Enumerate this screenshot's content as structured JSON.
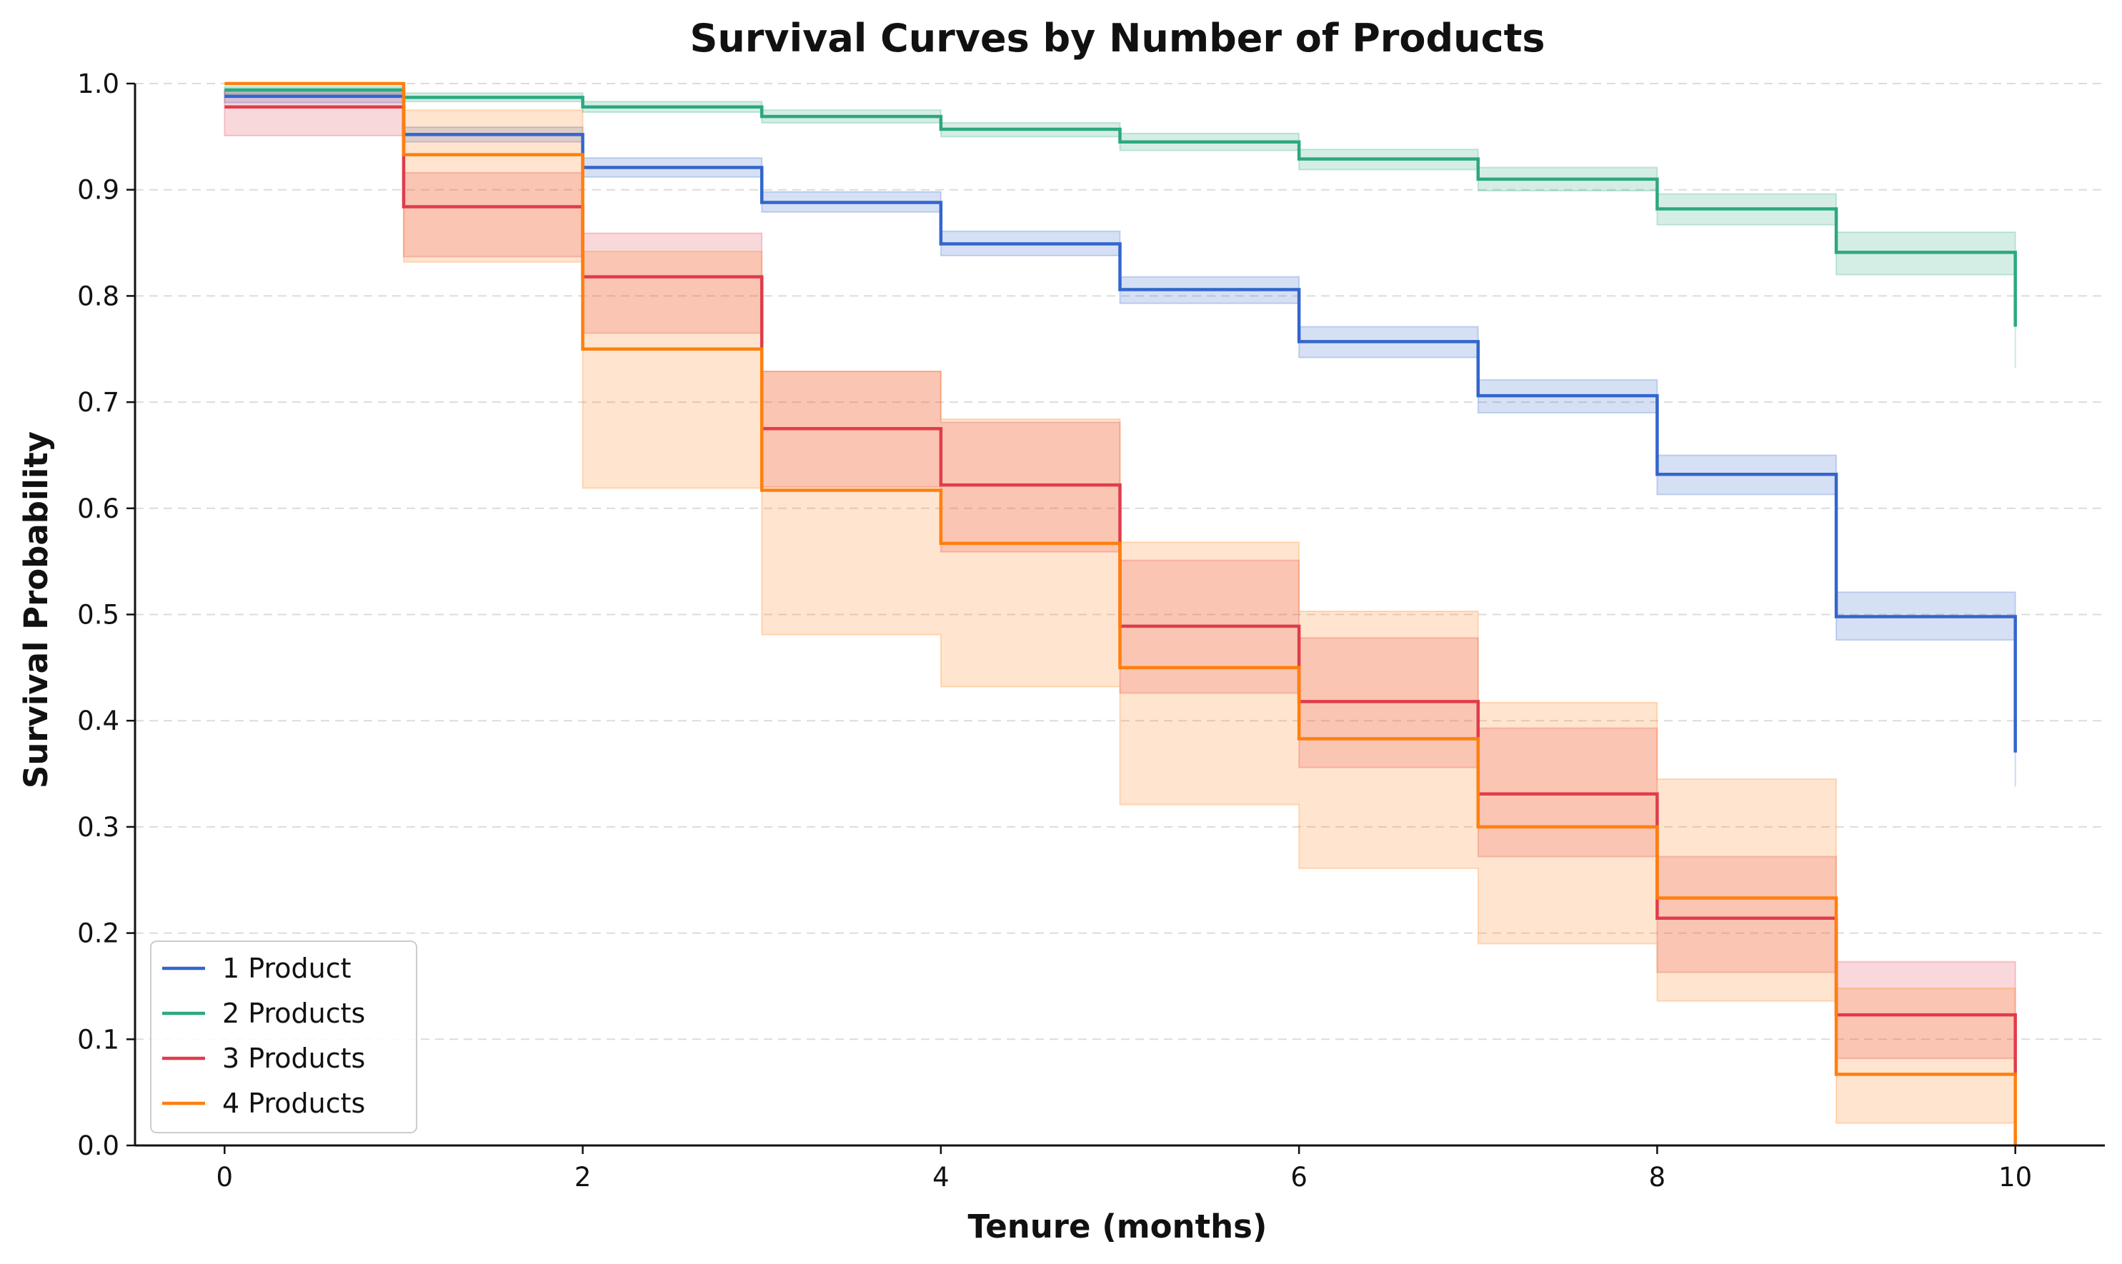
{
  "chart_data": {
    "type": "line",
    "subtype": "step-survival-with-confidence-bands",
    "title": "Survival Curves by Number of Products",
    "xlabel": "Tenure (months)",
    "ylabel": "Survival Probability",
    "xlim": [
      -0.5,
      10.5
    ],
    "ylim": [
      0,
      1.0
    ],
    "xticks": [
      0,
      2,
      4,
      6,
      8,
      10
    ],
    "xtick_labels": [
      "0",
      "2",
      "4",
      "6",
      "8",
      "10"
    ],
    "yticks": [
      0.0,
      0.1,
      0.2,
      0.3,
      0.4,
      0.5,
      0.6,
      0.7,
      0.8,
      0.9,
      1.0
    ],
    "ytick_labels": [
      "0.0",
      "0.1",
      "0.2",
      "0.3",
      "0.4",
      "0.5",
      "0.6",
      "0.7",
      "0.8",
      "0.9",
      "1.0"
    ],
    "grid": "horizontal dashed",
    "legend_position": "lower-left",
    "x": [
      0,
      1,
      2,
      3,
      4,
      5,
      6,
      7,
      8,
      9,
      10
    ],
    "series": [
      {
        "name": "1 Product",
        "color": "#3366cc",
        "values": [
          0.988,
          0.952,
          0.921,
          0.888,
          0.849,
          0.806,
          0.757,
          0.706,
          0.632,
          0.498,
          0.37
        ],
        "lower": [
          0.982,
          0.945,
          0.912,
          0.879,
          0.838,
          0.793,
          0.742,
          0.69,
          0.613,
          0.476,
          0.338
        ],
        "upper": [
          0.993,
          0.959,
          0.93,
          0.898,
          0.861,
          0.818,
          0.771,
          0.721,
          0.65,
          0.521,
          0.402
        ]
      },
      {
        "name": "2 Products",
        "color": "#2ca87f",
        "values": [
          0.994,
          0.987,
          0.978,
          0.969,
          0.957,
          0.945,
          0.929,
          0.91,
          0.882,
          0.841,
          0.771
        ],
        "lower": [
          0.99,
          0.983,
          0.973,
          0.963,
          0.95,
          0.937,
          0.919,
          0.899,
          0.867,
          0.82,
          0.732
        ],
        "upper": [
          0.997,
          0.991,
          0.983,
          0.975,
          0.963,
          0.953,
          0.938,
          0.921,
          0.896,
          0.86,
          0.81
        ]
      },
      {
        "name": "3 Products",
        "color": "#e03c4b",
        "values": [
          0.978,
          0.884,
          0.818,
          0.675,
          0.622,
          0.489,
          0.418,
          0.331,
          0.214,
          0.123,
          0.065
        ],
        "lower": [
          0.951,
          0.837,
          0.765,
          0.62,
          0.559,
          0.426,
          0.356,
          0.272,
          0.163,
          0.082,
          0.03
        ],
        "upper": [
          0.993,
          0.916,
          0.859,
          0.729,
          0.681,
          0.551,
          0.478,
          0.393,
          0.272,
          0.173,
          0.12
        ]
      },
      {
        "name": "4 Products",
        "color": "#ff7f0e",
        "values": [
          1.0,
          0.933,
          0.75,
          0.617,
          0.567,
          0.45,
          0.383,
          0.3,
          0.233,
          0.067,
          0.0
        ],
        "lower": [
          1.0,
          0.832,
          0.619,
          0.481,
          0.432,
          0.321,
          0.261,
          0.19,
          0.136,
          0.021,
          0.0
        ],
        "upper": [
          1.0,
          0.975,
          0.842,
          0.729,
          0.684,
          0.568,
          0.503,
          0.417,
          0.345,
          0.148,
          0.0
        ]
      }
    ]
  }
}
